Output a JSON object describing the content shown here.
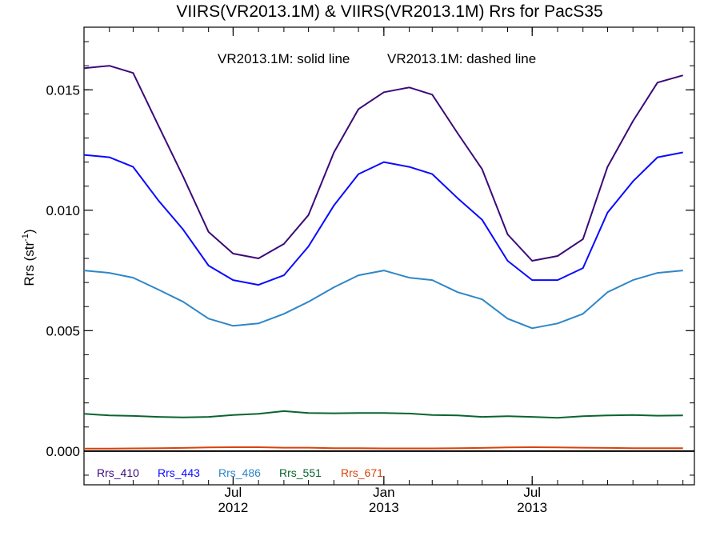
{
  "chart_data": {
    "type": "line",
    "title": "VIIRS(VR2013.1M) & VIIRS(VR2013.1M)  Rrs for PacS35",
    "annotation_solid": "VR2013.1M: solid line",
    "annotation_dashed": "VR2013.1M: dashed line",
    "ylabel": "Rrs (str",
    "ylabel_sup": "-1",
    "ylabel_close": ")",
    "ylim": [
      -0.0014,
      0.0176
    ],
    "xlim": [
      "2012-01-01",
      "2014-01-15"
    ],
    "y_ticks": [
      {
        "value": 0.0,
        "label": "0.000"
      },
      {
        "value": 0.005,
        "label": "0.005"
      },
      {
        "value": 0.01,
        "label": "0.010"
      },
      {
        "value": 0.015,
        "label": "0.015"
      }
    ],
    "x_ticks": [
      {
        "date": "2012-07-01",
        "label1": "Jul",
        "label2": "2012"
      },
      {
        "date": "2013-01-01",
        "label1": "Jan",
        "label2": "2013"
      },
      {
        "date": "2013-07-01",
        "label1": "Jul",
        "label2": "2013"
      }
    ],
    "x": [
      "2012-01-01",
      "2012-02-01",
      "2012-03-01",
      "2012-04-01",
      "2012-05-01",
      "2012-06-01",
      "2012-07-01",
      "2012-08-01",
      "2012-09-01",
      "2012-10-01",
      "2012-11-01",
      "2012-12-01",
      "2013-01-01",
      "2013-02-01",
      "2013-03-01",
      "2013-04-01",
      "2013-05-01",
      "2013-06-01",
      "2013-07-01",
      "2013-08-01",
      "2013-09-01",
      "2013-10-01",
      "2013-11-01",
      "2013-12-01",
      "2014-01-01"
    ],
    "series": [
      {
        "name": "Rrs_410",
        "color": "#3c0a78",
        "values": [
          0.0159,
          0.016,
          0.0157,
          0.0135,
          0.0114,
          0.0091,
          0.0082,
          0.008,
          0.0086,
          0.0098,
          0.0124,
          0.0142,
          0.0149,
          0.0151,
          0.0148,
          0.0132,
          0.0117,
          0.009,
          0.0079,
          0.0081,
          0.0088,
          0.0118,
          0.0137,
          0.0153,
          0.0156
        ]
      },
      {
        "name": "Rrs_443",
        "color": "#0a0aff",
        "values": [
          0.0123,
          0.0122,
          0.0118,
          0.0104,
          0.0092,
          0.0077,
          0.0071,
          0.0069,
          0.0073,
          0.0085,
          0.0102,
          0.0115,
          0.012,
          0.0118,
          0.0115,
          0.0105,
          0.0096,
          0.0079,
          0.0071,
          0.0071,
          0.0076,
          0.0099,
          0.0112,
          0.0122,
          0.0124
        ]
      },
      {
        "name": "Rrs_486",
        "color": "#2f86c7",
        "values": [
          0.0075,
          0.0074,
          0.0072,
          0.0067,
          0.0062,
          0.0055,
          0.0052,
          0.0053,
          0.0057,
          0.0062,
          0.0068,
          0.0073,
          0.0075,
          0.0072,
          0.0071,
          0.0066,
          0.0063,
          0.0055,
          0.0051,
          0.0053,
          0.0057,
          0.0066,
          0.0071,
          0.0074,
          0.0075
        ]
      },
      {
        "name": "Rrs_551",
        "color": "#0a6430",
        "values": [
          0.00155,
          0.00148,
          0.00146,
          0.00142,
          0.0014,
          0.00142,
          0.0015,
          0.00155,
          0.00166,
          0.00158,
          0.00157,
          0.00158,
          0.00158,
          0.00156,
          0.0015,
          0.00148,
          0.00142,
          0.00145,
          0.00142,
          0.00138,
          0.00145,
          0.00148,
          0.0015,
          0.00147,
          0.00148
        ]
      },
      {
        "name": "Rrs_671",
        "color": "#d9430a",
        "values": [
          0.0001,
          0.0001,
          0.00011,
          0.00012,
          0.00013,
          0.00015,
          0.00016,
          0.00016,
          0.00014,
          0.00014,
          0.00012,
          0.00012,
          0.00011,
          0.00011,
          0.00011,
          0.00012,
          0.00013,
          0.00015,
          0.00016,
          0.00015,
          0.00014,
          0.00013,
          0.00012,
          0.00012,
          0.00012
        ]
      }
    ],
    "zero_line_color": "#000000",
    "grid": false,
    "legend_position": "bottom-left inside"
  }
}
